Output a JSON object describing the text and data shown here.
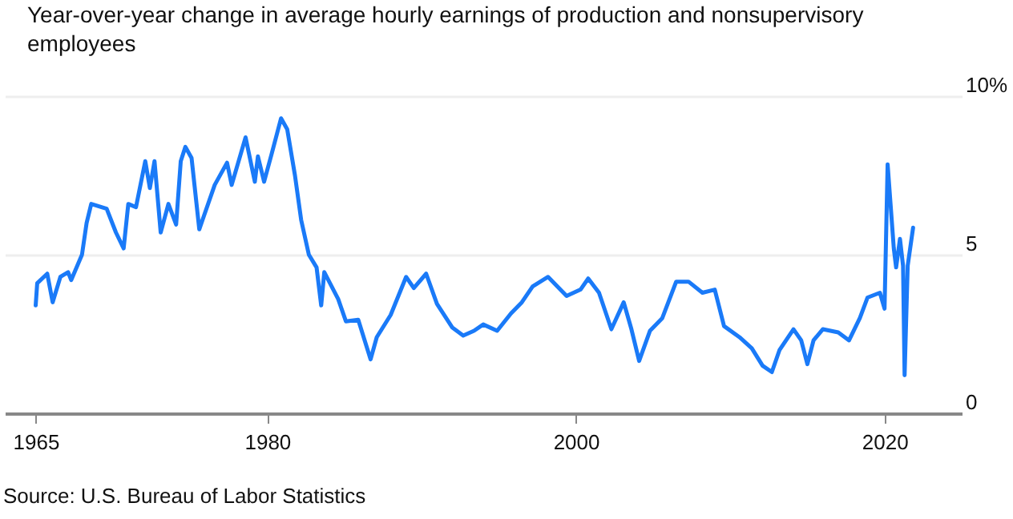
{
  "chart_data": {
    "type": "line",
    "title": "Year-over-year change in average hourly earnings of production and nonsupervisory employees",
    "annotations": [
      "Source: U.S. Bureau of Labor Statistics"
    ],
    "xlim": [
      1963,
      2025
    ],
    "xticks": [
      1965,
      1980,
      2000,
      2020
    ],
    "ylim": [
      0,
      10
    ],
    "yticks": [
      0,
      5,
      {
        "value": 10,
        "label": "10%"
      }
    ],
    "grid": "y",
    "marker": "none",
    "line_style": "solid",
    "series": [
      {
        "color": "#1a7af8",
        "x": [
          1965.0,
          1965.1,
          1965.75,
          1966.1,
          1966.6,
          1967.1,
          1967.3,
          1968.0,
          1968.3,
          1968.6,
          1969.6,
          1970.2,
          1970.7,
          1971.0,
          1971.5,
          1972.1,
          1972.4,
          1972.7,
          1973.1,
          1973.6,
          1974.1,
          1974.4,
          1974.7,
          1975.1,
          1975.6,
          1976.6,
          1977.4,
          1977.7,
          1978.6,
          1979.2,
          1979.4,
          1979.8,
          1980.3,
          1980.9,
          1981.3,
          1981.8,
          1982.2,
          1982.7,
          1983.2,
          1983.5,
          1983.7,
          1984.6,
          1985.1,
          1985.9,
          1986.7,
          1987.1,
          1988.0,
          1989.0,
          1989.5,
          1990.3,
          1991.0,
          1992.0,
          1992.7,
          1993.4,
          1994.0,
          1994.9,
          1995.8,
          1996.5,
          1997.2,
          1998.2,
          1999.4,
          2000.3,
          2000.8,
          2001.5,
          2002.3,
          2003.1,
          2003.6,
          2004.1,
          2004.8,
          2005.6,
          2006.5,
          2007.3,
          2008.2,
          2009.0,
          2009.6,
          2010.6,
          2011.4,
          2012.1,
          2012.7,
          2013.2,
          2014.1,
          2014.6,
          2015.0,
          2015.4,
          2016.0,
          2017.0,
          2017.7,
          2018.4,
          2018.9,
          2019.7,
          2020.0,
          2020.2,
          2020.6,
          2020.75,
          2021.0,
          2021.2,
          2021.3,
          2021.5,
          2021.85
        ],
        "values": [
          3.4,
          4.1,
          4.4,
          3.5,
          4.3,
          4.45,
          4.2,
          5.0,
          6.0,
          6.6,
          6.45,
          5.7,
          5.2,
          6.6,
          6.5,
          7.95,
          7.1,
          7.95,
          5.7,
          6.6,
          5.95,
          7.95,
          8.4,
          8.05,
          5.8,
          7.2,
          7.9,
          7.2,
          8.7,
          7.3,
          8.1,
          7.3,
          8.2,
          9.3,
          8.95,
          7.5,
          6.1,
          5.0,
          4.6,
          3.4,
          4.45,
          3.6,
          2.9,
          2.95,
          1.7,
          2.4,
          3.1,
          4.3,
          3.95,
          4.4,
          3.45,
          2.7,
          2.45,
          2.6,
          2.8,
          2.6,
          3.15,
          3.5,
          4.0,
          4.3,
          3.7,
          3.9,
          4.25,
          3.8,
          2.65,
          3.5,
          2.65,
          1.65,
          2.6,
          3.0,
          4.15,
          4.15,
          3.8,
          3.9,
          2.75,
          2.4,
          2.05,
          1.5,
          1.3,
          2.0,
          2.65,
          2.3,
          1.55,
          2.3,
          2.65,
          2.55,
          2.3,
          3.0,
          3.65,
          3.8,
          3.3,
          7.85,
          5.2,
          4.6,
          5.5,
          4.65,
          1.2,
          4.65,
          5.85
        ]
      }
    ]
  }
}
